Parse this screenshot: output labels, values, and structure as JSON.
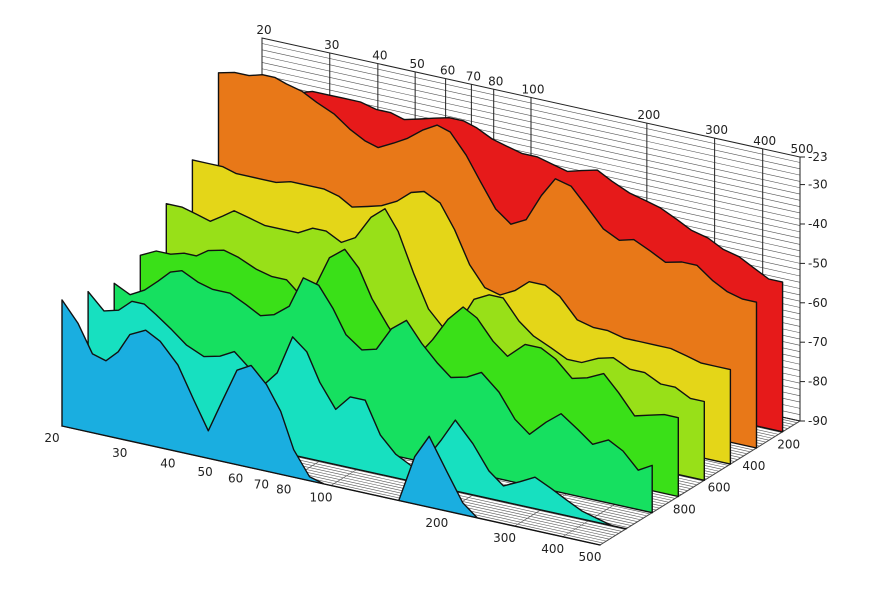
{
  "chart_data": {
    "type": "area",
    "title": "",
    "xlabel": "",
    "ylabel": "",
    "zlabel": "",
    "x_scale": "log",
    "x_range": [
      20,
      500
    ],
    "y_range": [
      -90,
      -23
    ],
    "z_range": [
      0,
      900
    ],
    "x_ticks": [
      20,
      30,
      40,
      50,
      60,
      70,
      80,
      100,
      200,
      300,
      400,
      500
    ],
    "x_tick_labels": [
      "20",
      "30",
      "40",
      "50",
      "60",
      "70",
      "80",
      "100",
      "200",
      "300",
      "400",
      "500"
    ],
    "y_ticks": [
      -23,
      -30,
      -40,
      -50,
      -60,
      -70,
      -80,
      -90
    ],
    "y_tick_labels": [
      "-23",
      "-30",
      "-40",
      "-50",
      "-60",
      "-70",
      "-80",
      "-90"
    ],
    "z_ticks": [
      200,
      400,
      600,
      800
    ],
    "z_tick_labels": [
      "200",
      "400",
      "600",
      "800"
    ],
    "grid": true,
    "legend": "none",
    "x": [
      20,
      22,
      24,
      26,
      28,
      30,
      33,
      36,
      40,
      44,
      48,
      52,
      57,
      62,
      68,
      74,
      80,
      88,
      96,
      105,
      115,
      126,
      138,
      150,
      165,
      180,
      200,
      220,
      240,
      265,
      290,
      320,
      350,
      385,
      420,
      460,
      500
    ],
    "series": [
      {
        "z": 0,
        "color": "#1aaee0",
        "values": [
          -58,
          -63,
          -70,
          -71,
          -68,
          -63,
          -61,
          -63,
          -68,
          -76,
          -83,
          -75,
          -66,
          -64,
          -68,
          -74,
          -83,
          -89,
          -90,
          -90,
          -90,
          -90,
          -90,
          -90,
          -78,
          -72,
          -80,
          -87,
          -90,
          -90,
          -90,
          -90,
          -90,
          -90,
          -90,
          -90,
          -90
        ]
      },
      {
        "z": 150,
        "color": "#17e0c0",
        "values": [
          -60,
          -64,
          -63,
          -60,
          -60,
          -62,
          -65,
          -68,
          -70,
          -69,
          -67,
          -70,
          -74,
          -70,
          -60,
          -63,
          -70,
          -76,
          -72,
          -72,
          -80,
          -84,
          -86,
          -84,
          -78,
          -72,
          -77,
          -83,
          -86,
          -84,
          -82,
          -84,
          -86,
          -88,
          -89,
          -90,
          -90
        ]
      },
      {
        "z": 300,
        "color": "#16e060",
        "values": [
          -62,
          -64,
          -62,
          -59,
          -56,
          -55,
          -57,
          -58,
          -58,
          -60,
          -62,
          -61,
          -58,
          -50,
          -51,
          -56,
          -62,
          -65,
          -64,
          -58,
          -55,
          -60,
          -64,
          -67,
          -66,
          -64,
          -68,
          -74,
          -77,
          -73,
          -70,
          -73,
          -76,
          -74,
          -76,
          -80,
          -78
        ]
      },
      {
        "z": 450,
        "color": "#3ae018",
        "values": [
          -59,
          -57,
          -57,
          -56,
          -56,
          -54,
          -53,
          -54,
          -56,
          -57,
          -57,
          -60,
          -57,
          -49,
          -46,
          -50,
          -57,
          -63,
          -68,
          -69,
          -64,
          -58,
          -54,
          -56,
          -61,
          -64,
          -60,
          -60,
          -62,
          -66,
          -65,
          -63,
          -67,
          -72,
          -71,
          -70,
          -70
        ]
      },
      {
        "z": 600,
        "color": "#98e018",
        "values": [
          -50,
          -50,
          -51,
          -52,
          -50,
          -48,
          -49,
          -50,
          -50,
          -50,
          -48,
          -48,
          -50,
          -48,
          -42,
          -39,
          -44,
          -54,
          -62,
          -66,
          -64,
          -57,
          -55,
          -55,
          -60,
          -63,
          -65,
          -67,
          -67,
          -65,
          -64,
          -66,
          -66,
          -68,
          -68,
          -70,
          -70
        ]
      },
      {
        "z": 750,
        "color": "#e4d618",
        "values": [
          -43,
          -43,
          -43,
          -44,
          -44,
          -44,
          -44,
          -43,
          -43,
          -43,
          -44,
          -46,
          -45,
          -44,
          -42,
          -39,
          -38,
          -40,
          -46,
          -54,
          -59,
          -60,
          -58,
          -55,
          -55,
          -57,
          -62,
          -63,
          -63,
          -64,
          -64,
          -64,
          -64,
          -65,
          -66,
          -66,
          -66
        ]
      },
      {
        "z": 900,
        "color": "#e87818",
        "values": [
          -25,
          -24,
          -24,
          -23,
          -23,
          -24,
          -25,
          -27,
          -29,
          -32,
          -34,
          -35,
          -33,
          -31,
          -28,
          -26,
          -27,
          -32,
          -38,
          -44,
          -47,
          -45,
          -38,
          -33,
          -34,
          -38,
          -43,
          -45,
          -44,
          -46,
          -48,
          -47,
          -47,
          -50,
          -52,
          -53,
          -53
        ]
      },
      {
        "z": 1050,
        "color": "#e61a1a",
        "values": [
          -30,
          -30,
          -30,
          -31,
          -31,
          -30,
          -30,
          -30,
          -30,
          -31,
          -31,
          -32,
          -31,
          -30,
          -29,
          -29,
          -30,
          -32,
          -33,
          -34,
          -34,
          -35,
          -36,
          -35,
          -34,
          -36,
          -38,
          -39,
          -40,
          -42,
          -44,
          -45,
          -47,
          -48,
          -50,
          -52,
          -52
        ]
      }
    ]
  }
}
